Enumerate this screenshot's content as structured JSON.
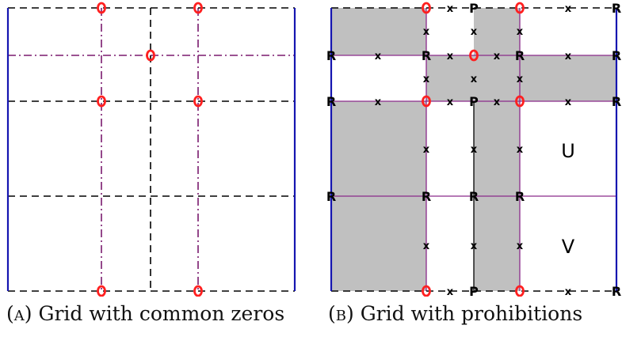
{
  "colors": {
    "grid_dash": "#000000",
    "grid_dashdot": "#7a1a6e",
    "purple_line": "#8a2a8a",
    "border": "#1515b0",
    "zero": "#ff2020",
    "shade": "#c0c0c0"
  },
  "labels": {
    "zero_symbol": "O",
    "prohibition_symbol": "X",
    "r_symbol": "R",
    "p_symbol": "P",
    "region_u": "U",
    "region_v": "V"
  },
  "captions": {
    "a_tag": "(a)",
    "a_text": "Grid with common zeros",
    "b_tag": "(b)",
    "b_text": "Grid with prohibitions"
  }
}
